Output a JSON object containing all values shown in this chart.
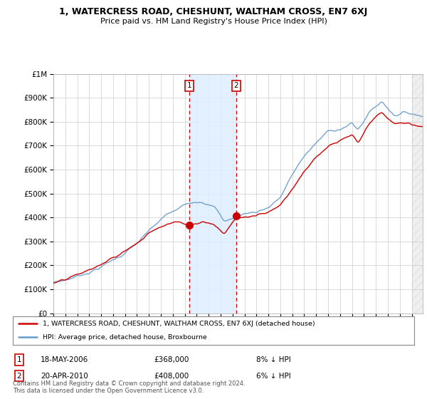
{
  "title": "1, WATERCRESS ROAD, CHESHUNT, WALTHAM CROSS, EN7 6XJ",
  "subtitle": "Price paid vs. HM Land Registry's House Price Index (HPI)",
  "legend_line1": "1, WATERCRESS ROAD, CHESHUNT, WALTHAM CROSS, EN7 6XJ (detached house)",
  "legend_line2": "HPI: Average price, detached house, Broxbourne",
  "transaction1_date": "18-MAY-2006",
  "transaction1_price": "£368,000",
  "transaction1_hpi": "8% ↓ HPI",
  "transaction2_date": "20-APR-2010",
  "transaction2_price": "£408,000",
  "transaction2_hpi": "6% ↓ HPI",
  "footer": "Contains HM Land Registry data © Crown copyright and database right 2024.\nThis data is licensed under the Open Government Licence v3.0.",
  "red_color": "#cc0000",
  "blue_color": "#6699cc",
  "shade_color": "#ddeeff",
  "ylim_min": 0,
  "ylim_max": 1000000,
  "background_color": "#ffffff",
  "t1_year": 2006.375,
  "t1_price": 368000,
  "t2_year": 2010.3,
  "t2_price": 408000
}
